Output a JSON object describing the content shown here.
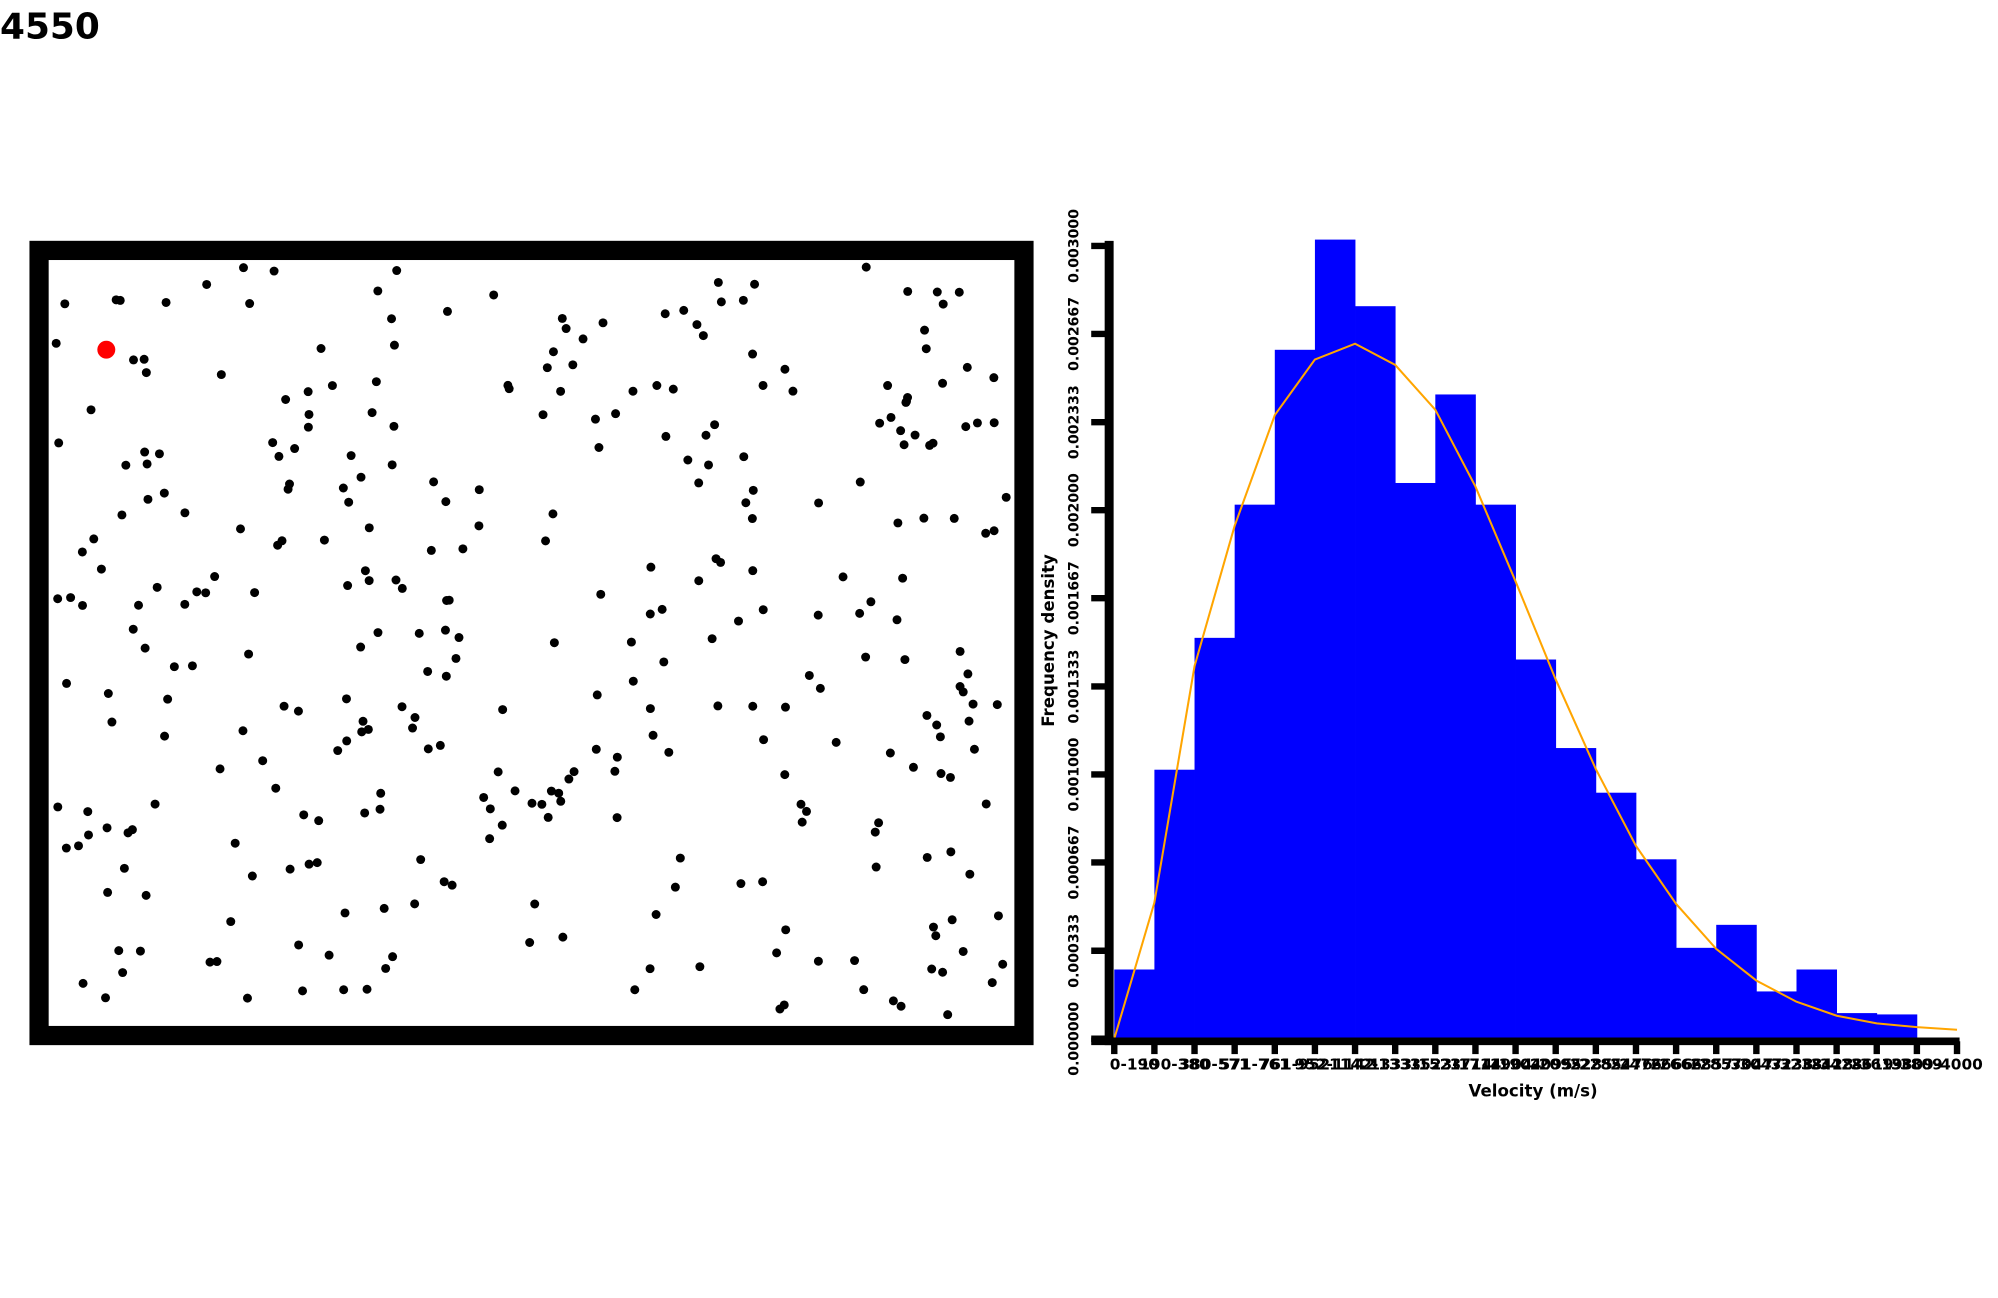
{
  "counter": "4550",
  "chart_data": {
    "type": "bar",
    "x_label": "Velocity (m/s)",
    "y_label": "Frequency density",
    "categories": [
      "0-190",
      "190-380",
      "380-571",
      "571-761",
      "761-952",
      "952-1142",
      "1142-1333",
      "1333-1523",
      "1523-1714",
      "1714-1904",
      "1904-2095",
      "2095-2285",
      "2285-2476",
      "2476-2666",
      "2666-2857",
      "2857-3047",
      "3047-3238",
      "3238-3428",
      "3428-3619",
      "3619-3809",
      "3809-4000"
    ],
    "values": [
      0.000262,
      0.001018,
      0.001517,
      0.002021,
      0.002607,
      0.003024,
      0.002772,
      0.002103,
      0.002438,
      0.002021,
      0.001435,
      0.0011,
      0.000931,
      0.000679,
      0.000344,
      0.000431,
      0.000179,
      0.000262,
      9.7e-05,
      9.2e-05,
      0
    ],
    "color": "#0000ff",
    "ylim": [
      0,
      0.003
    ],
    "yticks": [
      {
        "value": 0,
        "label": "0.000000"
      },
      {
        "value": 0.000333,
        "label": "0.000333"
      },
      {
        "value": 0.000667,
        "label": "0.000667"
      },
      {
        "value": 0.001,
        "label": "0.001000"
      },
      {
        "value": 0.001333,
        "label": "0.001333"
      },
      {
        "value": 0.001667,
        "label": "0.001667"
      },
      {
        "value": 0.002,
        "label": "0.002000"
      },
      {
        "value": 0.002333,
        "label": "0.002333"
      },
      {
        "value": 0.002667,
        "label": "0.002667"
      },
      {
        "value": 0.003,
        "label": "0.003000"
      }
    ],
    "curve": {
      "color": "orange",
      "xlim": [
        0,
        4000
      ],
      "x": [
        0,
        190,
        381,
        571,
        762,
        952,
        1143,
        1333,
        1524,
        1714,
        1905,
        2095,
        2286,
        2476,
        2667,
        2857,
        3048,
        3238,
        3429,
        3619,
        3810,
        4000
      ],
      "values": [
        0,
        0.000514,
        0.00141,
        0.00194,
        0.00236,
        0.00257,
        0.00263,
        0.00255,
        0.00238,
        0.00209,
        0.00173,
        0.00136,
        0.00102,
        0.00073,
        0.00051,
        0.00034,
        0.00022,
        0.00014,
        8.7e-05,
        5.8e-05,
        4.4e-05,
        3.4e-05
      ]
    }
  }
}
